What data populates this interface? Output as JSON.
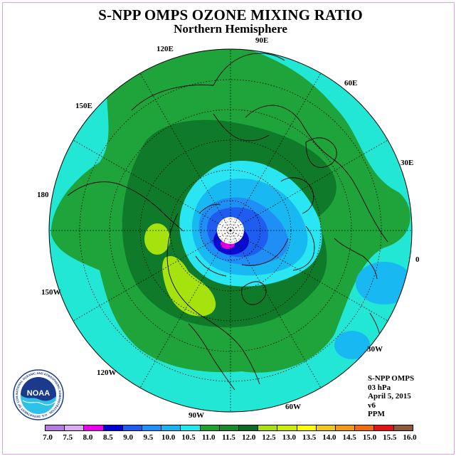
{
  "title": "S-NPP OMPS OZONE MIXING RATIO",
  "subtitle": "Northern Hemisphere",
  "longitude_labels": [
    "90E",
    "60E",
    "30E",
    "0",
    "30W",
    "60W",
    "90W",
    "120W",
    "150W",
    "180",
    "150E",
    "120E"
  ],
  "info": {
    "instrument": "S-NPP OMPS",
    "pressure_level": "03 hPa",
    "date": "April 5, 2015",
    "version": "v6",
    "units": "PPM"
  },
  "logo": {
    "text": "NOAA",
    "ring_text": "NATIONAL OCEANIC AND ATMOSPHERIC ADMINISTRATION · U.S. DEPARTMENT OF COMMERCE"
  },
  "colorbar": {
    "labels": [
      "7.0",
      "7.5",
      "8.0",
      "8.5",
      "9.0",
      "9.5",
      "10.0",
      "10.5",
      "11.0",
      "11.5",
      "12.0",
      "12.5",
      "13.0",
      "13.5",
      "14.0",
      "14.5",
      "15.0",
      "15.5",
      "16.0"
    ],
    "colors": [
      "#b57be0",
      "#dcaaf0",
      "#ee00ee",
      "#0000d8",
      "#1c5cf2",
      "#1e90ff",
      "#19b4f2",
      "#20e8ee",
      "#1fa02f",
      "#178a2a",
      "#0c6a22",
      "#a8e20e",
      "#ccec0a",
      "#ffff00",
      "#f2c81a",
      "#f39a19",
      "#f26a10",
      "#e11313",
      "#8b5a3a"
    ]
  },
  "colors": {
    "cyan": "#22e7d5",
    "green": "#1fa33b",
    "dark_green": "#0f7a29",
    "light_cyan": "#2ae6f2",
    "light_blue": "#18b9f2",
    "blue": "#1f8ff5",
    "deep_blue": "#1f5cf0",
    "navy": "#0a0ad0",
    "magenta": "#e000e0",
    "yellow_green": "#a6e20e",
    "no_data": "#ffffff"
  }
}
